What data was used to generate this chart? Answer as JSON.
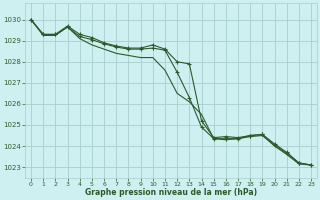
{
  "title": "Graphe pression niveau de la mer (hPa)",
  "background_color": "#cff0f0",
  "grid_color": "#a8cece",
  "line_color": "#2d5a2d",
  "xlim": [
    -0.5,
    23.5
  ],
  "ylim": [
    1022.5,
    1030.8
  ],
  "yticks": [
    1023,
    1024,
    1025,
    1026,
    1027,
    1028,
    1029,
    1030
  ],
  "xticks": [
    0,
    1,
    2,
    3,
    4,
    5,
    6,
    7,
    8,
    9,
    10,
    11,
    12,
    13,
    14,
    15,
    16,
    17,
    18,
    19,
    20,
    21,
    22,
    23
  ],
  "series1_x": [
    0,
    1,
    2,
    3,
    4,
    5,
    6,
    7,
    8,
    9,
    10,
    11,
    12,
    13,
    14,
    15,
    16,
    17,
    18,
    19,
    20,
    21,
    22,
    23
  ],
  "series1_y": [
    1030.0,
    1029.3,
    1029.3,
    1029.7,
    1029.3,
    1029.15,
    1028.9,
    1028.75,
    1028.65,
    1028.65,
    1028.8,
    1028.6,
    1028.0,
    1027.9,
    1025.2,
    1024.4,
    1024.45,
    1024.4,
    1024.5,
    1024.55,
    1024.1,
    1023.7,
    1023.2,
    1023.1
  ],
  "series2_x": [
    0,
    1,
    2,
    3,
    4,
    5,
    6,
    7,
    8,
    9,
    10,
    11,
    12,
    13,
    14,
    15,
    16,
    17,
    18,
    19,
    20,
    21,
    22,
    23
  ],
  "series2_y": [
    1030.0,
    1029.3,
    1029.3,
    1029.65,
    1029.2,
    1029.05,
    1028.85,
    1028.7,
    1028.6,
    1028.6,
    1028.65,
    1028.55,
    1027.5,
    1026.3,
    1024.9,
    1024.35,
    1024.35,
    1024.35,
    1024.5,
    1024.55,
    1024.05,
    1023.65,
    1023.2,
    1023.1
  ],
  "series3_x": [
    0,
    1,
    2,
    3,
    4,
    5,
    6,
    7,
    8,
    9,
    10,
    11,
    12,
    13,
    14,
    15,
    16,
    17,
    18,
    19,
    20,
    21,
    22,
    23
  ],
  "series3_y": [
    1030.0,
    1029.25,
    1029.25,
    1029.65,
    1029.1,
    1028.8,
    1028.6,
    1028.4,
    1028.3,
    1028.2,
    1028.2,
    1027.6,
    1026.5,
    1026.1,
    1025.5,
    1024.35,
    1024.3,
    1024.35,
    1024.45,
    1024.5,
    1024.0,
    1023.6,
    1023.15,
    1023.1
  ]
}
